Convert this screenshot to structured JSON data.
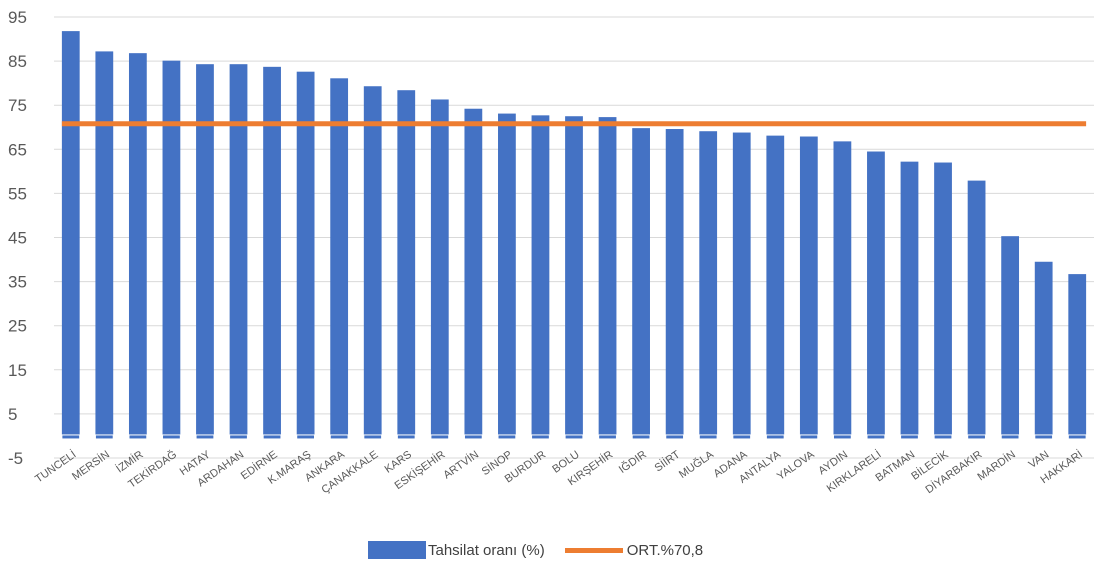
{
  "chart_data": {
    "type": "bar",
    "categories": [
      "TUNCELİ",
      "MERSİN",
      "İZMİR",
      "TEKİRDAĞ",
      "HATAY",
      "ARDAHAN",
      "EDİRNE",
      "K.MARAŞ",
      "ANKARA",
      "ÇANAKKALE",
      "KARS",
      "ESKİŞEHİR",
      "ARTVİN",
      "SİNOP",
      "BURDUR",
      "BOLU",
      "KIRŞEHİR",
      "IĞDIR",
      "SİİRT",
      "MUĞLA",
      "ADANA",
      "ANTALYA",
      "YALOVA",
      "AYDIN",
      "KIRKLARELİ",
      "BATMAN",
      "BİLECİK",
      "DİYARBAKIR",
      "MARDİN",
      "VAN",
      "HAKKARİ"
    ],
    "series": [
      {
        "name": "Tahsilat oranı (%)",
        "color": "#4472C4",
        "values": [
          91.8,
          87.2,
          86.8,
          85.1,
          84.3,
          84.3,
          83.7,
          82.6,
          81.1,
          79.3,
          78.4,
          76.3,
          74.2,
          73.1,
          72.7,
          72.5,
          72.3,
          69.8,
          69.6,
          69.1,
          68.8,
          68.1,
          67.9,
          66.8,
          64.5,
          62.2,
          62.0,
          57.9,
          45.3,
          39.5,
          36.7
        ]
      },
      {
        "name": "ORT.%70,8",
        "type": "line",
        "color": "#ED7D31",
        "value": 70.8
      }
    ],
    "ylim": [
      -5,
      95
    ],
    "yticks": [
      -5,
      5,
      15,
      25,
      35,
      45,
      55,
      65,
      75,
      85,
      95
    ],
    "xlabel": "",
    "ylabel": "",
    "title": "",
    "grid": true,
    "legend": "bottom"
  }
}
